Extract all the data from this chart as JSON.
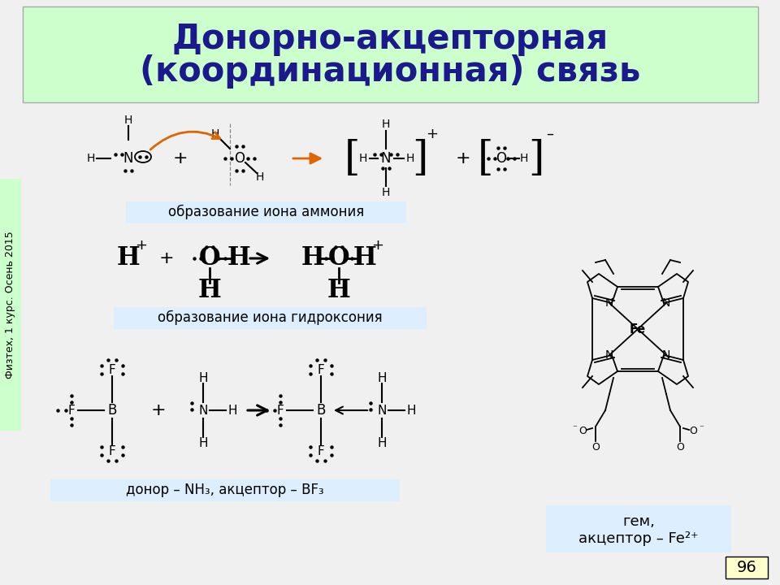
{
  "title_line1": "Донорно-акцепторная",
  "title_line2": "(координационная) связь",
  "title_bg": "#ccffcc",
  "title_color": "#1a1a8c",
  "bg_color": "#f0f0f0",
  "label_ammonium": "образование иона аммония",
  "label_ammonium_bg": "#ddeeff",
  "label_hydroxonium": "образование иона гидроксония",
  "label_hydroxonium_bg": "#ddeeff",
  "label_donor": "донор – NH₃, акцептор – BF₃",
  "label_donor_bg": "#ddeeff",
  "label_gem_bg": "#ddeeff",
  "page_number": "96",
  "page_number_bg": "#ffffcc",
  "side_label": "Физтех, 1 курс. Осень 2015",
  "side_label_bg": "#ccffcc",
  "arrow_color": "#dd6600"
}
